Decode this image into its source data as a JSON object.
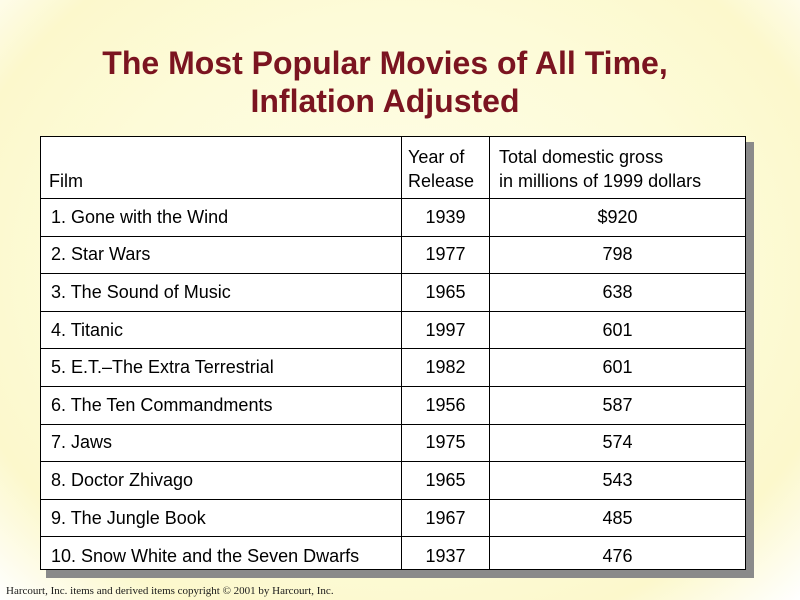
{
  "title": {
    "line1": "The Most Popular Movies of All Time,",
    "line2": "Inflation Adjusted"
  },
  "table": {
    "headers": {
      "film": "Film",
      "year_line1": "Year of",
      "year_line2": "Release",
      "gross_line1": "Total domestic gross",
      "gross_line2": "in millions of 1999 dollars"
    },
    "rows": [
      {
        "film": "1.  Gone with the Wind",
        "year": "1939",
        "gross": "$920"
      },
      {
        "film": "2.  Star Wars",
        "year": "1977",
        "gross": "798"
      },
      {
        "film": "3.  The Sound of Music",
        "year": "1965",
        "gross": "638"
      },
      {
        "film": "4.  Titanic",
        "year": "1997",
        "gross": "601"
      },
      {
        "film": "5.  E.T.–The Extra Terrestrial",
        "year": "1982",
        "gross": "601"
      },
      {
        "film": "6.  The Ten Commandments",
        "year": "1956",
        "gross": "587"
      },
      {
        "film": "7.  Jaws",
        "year": "1975",
        "gross": "574"
      },
      {
        "film": "8.  Doctor Zhivago",
        "year": "1965",
        "gross": "543"
      },
      {
        "film": "9.  The Jungle Book",
        "year": "1967",
        "gross": "485"
      },
      {
        "film": "10. Snow White and the Seven Dwarfs",
        "year": "1937",
        "gross": "476"
      }
    ]
  },
  "footer": "Harcourt, Inc. items and derived items copyright © 2001  by Harcourt, Inc.",
  "colors": {
    "title": "#7b1420",
    "background": "#fdfbd8"
  }
}
